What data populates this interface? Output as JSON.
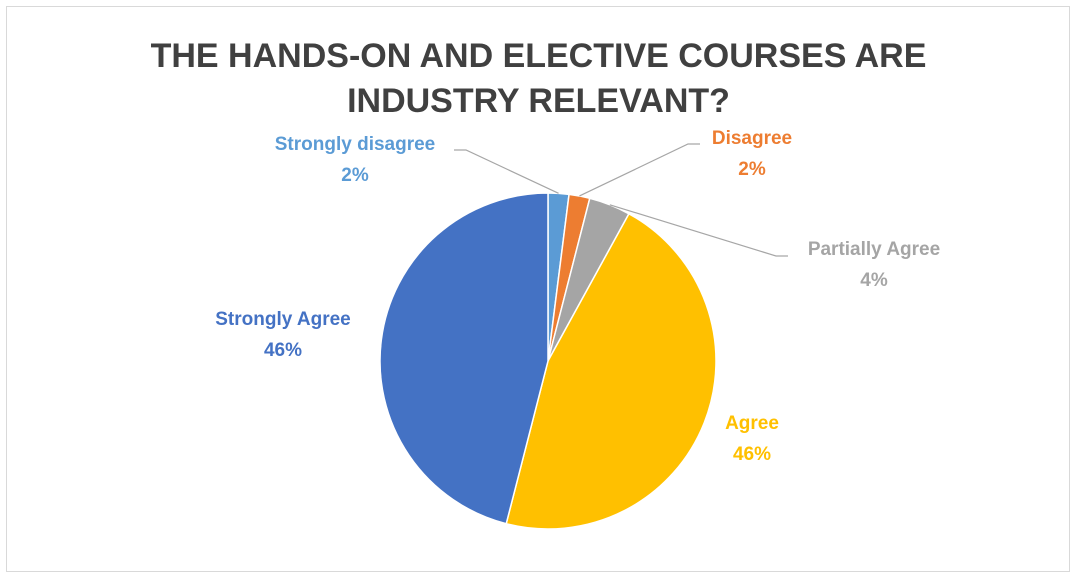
{
  "chart_data": {
    "type": "pie",
    "title_lines": [
      "THE HANDS-ON AND ELECTIVE COURSES ARE",
      "INDUSTRY RELEVANT?"
    ],
    "slices": [
      {
        "name": "Strongly disagree",
        "value": 2,
        "label": "2%",
        "color": "#5b9bd5"
      },
      {
        "name": "Disagree",
        "value": 2,
        "label": "2%",
        "color": "#ed7d31"
      },
      {
        "name": "Partially Agree",
        "value": 4,
        "label": "4%",
        "color": "#a5a5a5"
      },
      {
        "name": "Agree",
        "value": 46,
        "label": "46%",
        "color": "#ffc000"
      },
      {
        "name": "Strongly Agree",
        "value": 46,
        "label": "46%",
        "color": "#4472c4"
      }
    ],
    "start_angle": "12 o'clock",
    "direction": "clockwise",
    "legend": "none",
    "data_labels": "category name and percentage"
  }
}
